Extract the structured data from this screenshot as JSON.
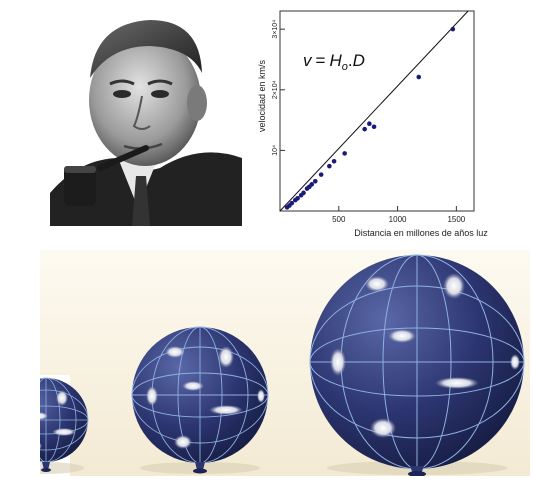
{
  "chart_data": {
    "type": "scatter",
    "title": "",
    "formula": {
      "v": "v",
      "eq": "=",
      "H": "H",
      "sub": "o",
      "dot": ".",
      "D": "D"
    },
    "xlabel": "Distancia en millones de años luz",
    "ylabel": "velocidad en km/s",
    "xlim": [
      0,
      1650
    ],
    "ylim": [
      0,
      33000
    ],
    "xticks": [
      {
        "value": 500,
        "label": "500"
      },
      {
        "value": 1000,
        "label": "1000"
      },
      {
        "value": 1500,
        "label": "1500"
      }
    ],
    "yticks": [
      {
        "value": 10000,
        "label": "10⁴"
      },
      {
        "value": 20000,
        "label": "2×10⁴"
      },
      {
        "value": 30000,
        "label": "3×10⁴"
      }
    ],
    "grid": false,
    "series": [
      {
        "points": [
          [
            60,
            600
          ],
          [
            80,
            900
          ],
          [
            100,
            1300
          ],
          [
            130,
            1800
          ],
          [
            150,
            2100
          ],
          [
            180,
            2600
          ],
          [
            200,
            3000
          ],
          [
            230,
            3700
          ],
          [
            250,
            4000
          ],
          [
            270,
            4400
          ],
          [
            300,
            4900
          ],
          [
            350,
            6000
          ],
          [
            420,
            7400
          ],
          [
            460,
            8200
          ],
          [
            550,
            9500
          ],
          [
            720,
            13500
          ],
          [
            760,
            14400
          ],
          [
            800,
            13900
          ],
          [
            1180,
            22100
          ],
          [
            1470,
            30000
          ]
        ],
        "fit_line": [
          [
            0,
            0
          ],
          [
            1600,
            33000
          ]
        ]
      }
    ],
    "point_color": "#1a1a7a"
  },
  "colors": {
    "globe_dark": "#1d2454",
    "globe_light": "#4a5796",
    "grid_line": "#8fb0e0",
    "panel_bg": "#f8f2e2"
  }
}
